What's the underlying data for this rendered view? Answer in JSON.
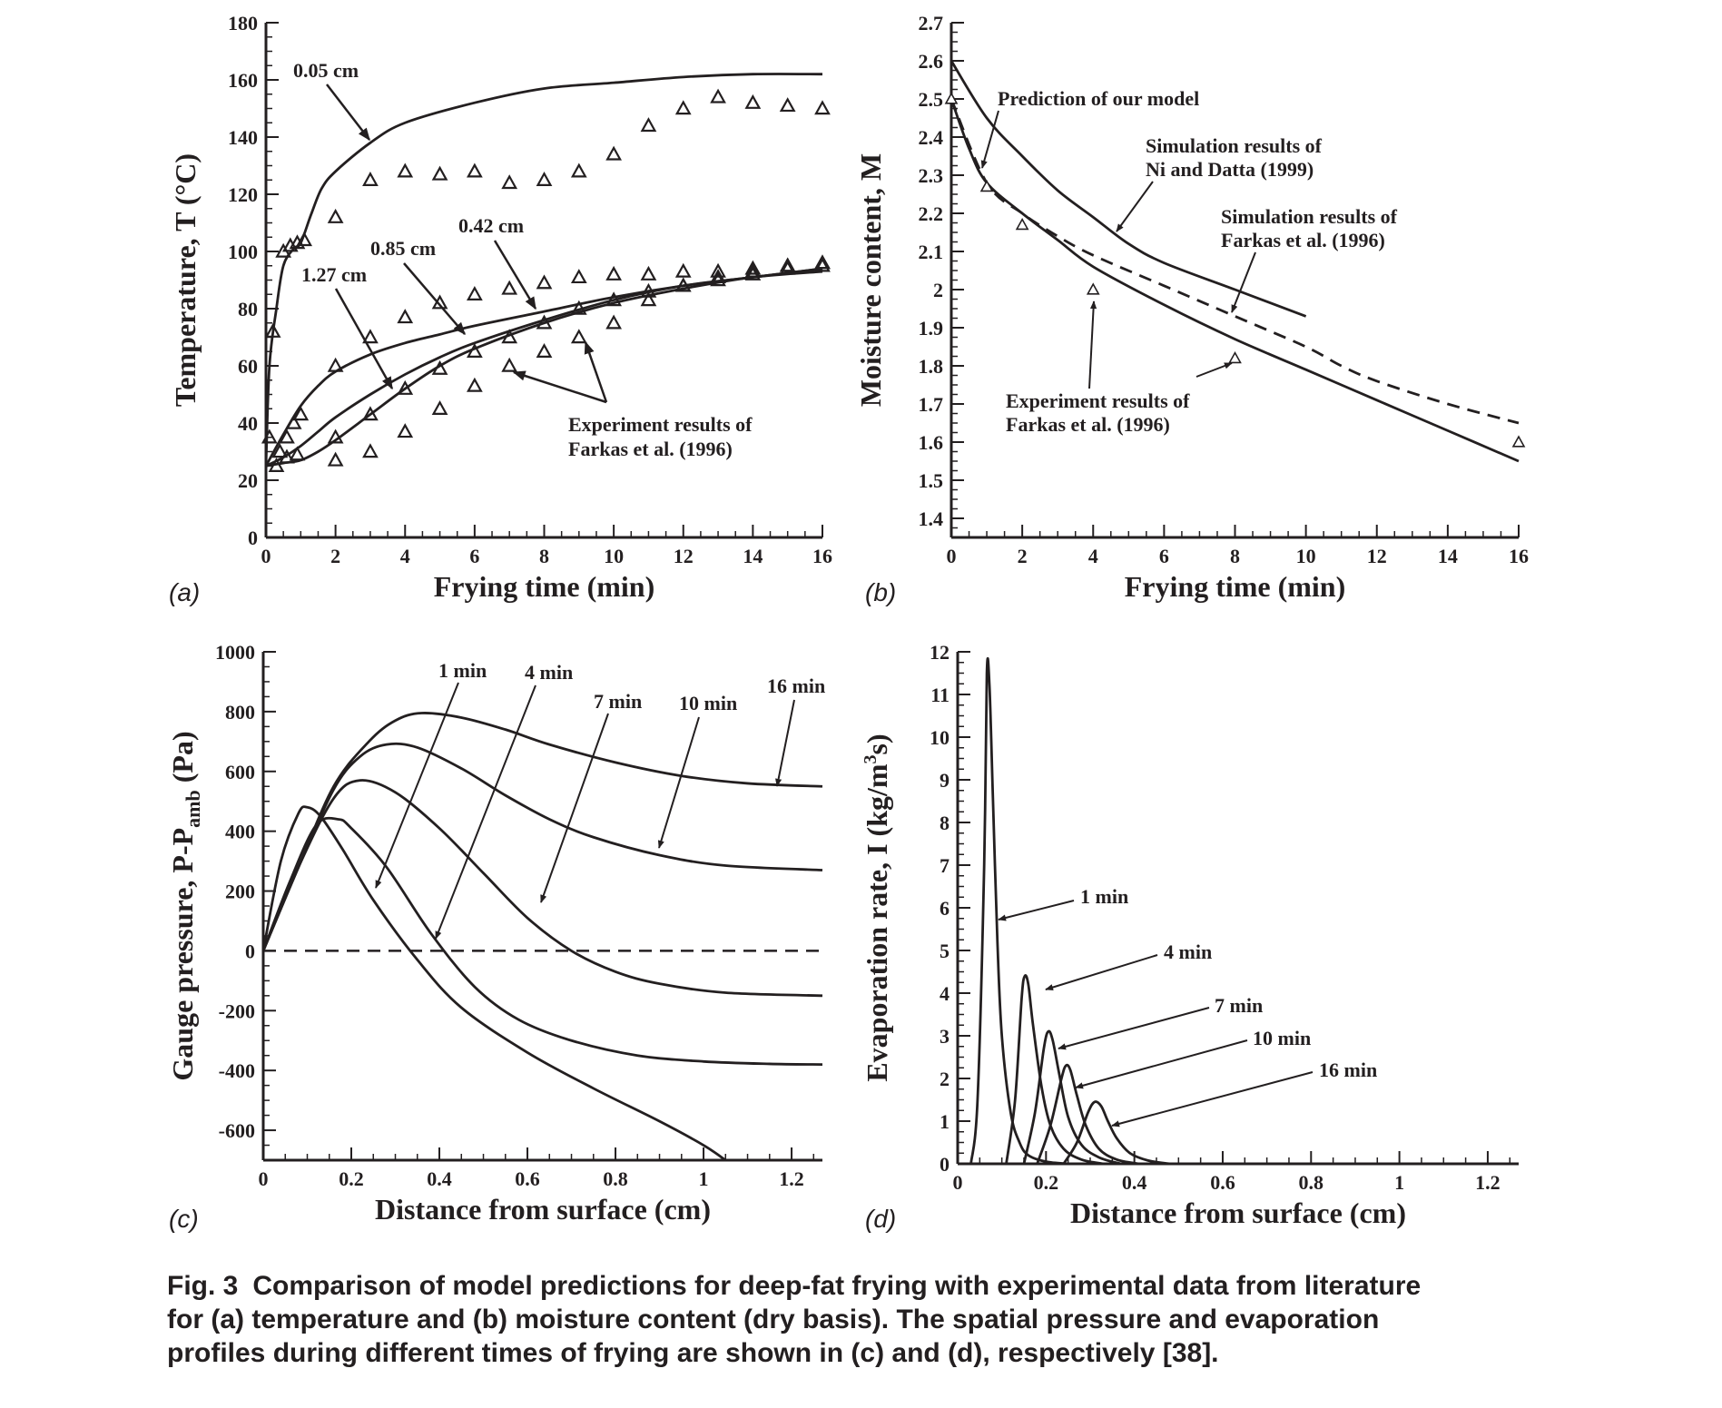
{
  "panels": {
    "a": "(a)",
    "b": "(b)",
    "c": "(c)",
    "d": "(d)"
  },
  "caption": {
    "label": "Fig. 3",
    "line1": "Comparison of model predictions for deep-fat frying with experimental data from literature",
    "line2": "for (a) temperature and (b) moisture content (dry basis). The spatial pressure and evaporation",
    "line3": "profiles during different times of frying are shown in (c) and (d), respectively [38]."
  },
  "chart_data": [
    {
      "id": "a",
      "type": "line",
      "xlabel": "Frying time (min)",
      "ylabel": "Temperature, T (°C)",
      "xlim": [
        0,
        16
      ],
      "ylim": [
        0,
        180
      ],
      "xticks": [
        0,
        2,
        4,
        6,
        8,
        10,
        12,
        14,
        16
      ],
      "yticks": [
        0,
        20,
        40,
        60,
        80,
        100,
        120,
        140,
        160,
        180
      ],
      "series": [
        {
          "name": "0.05 cm",
          "x": [
            0,
            0.1,
            0.3,
            0.5,
            0.8,
            1.0,
            1.3,
            1.6,
            2,
            3,
            4,
            6,
            8,
            10,
            12,
            14,
            16
          ],
          "y": [
            25,
            60,
            80,
            95,
            101,
            103,
            113,
            122,
            128,
            138,
            145,
            152,
            157,
            159,
            161,
            162,
            162
          ]
        },
        {
          "name": "0.42 cm",
          "x": [
            0,
            0.5,
            1,
            1.5,
            2,
            3,
            4,
            5,
            6,
            8,
            10,
            12,
            14,
            16
          ],
          "y": [
            25,
            36,
            46,
            53,
            58,
            64,
            68,
            71,
            74,
            79,
            84,
            88,
            91,
            94
          ]
        },
        {
          "name": "0.85 cm",
          "x": [
            0,
            0.5,
            1,
            1.5,
            2,
            3,
            4,
            5,
            6,
            8,
            10,
            12,
            14,
            16
          ],
          "y": [
            25,
            28,
            32,
            37,
            42,
            50,
            57,
            63,
            68,
            76,
            83,
            88,
            91,
            94
          ]
        },
        {
          "name": "1.27 cm",
          "x": [
            0,
            0.5,
            1,
            1.5,
            2,
            3,
            4,
            5,
            6,
            8,
            10,
            12,
            14,
            16
          ],
          "y": [
            25,
            26,
            27,
            30,
            34,
            43,
            52,
            60,
            66,
            75,
            82,
            87,
            91,
            93
          ]
        }
      ],
      "experiment": {
        "name": "Experiment results of Farkas et al. (1996)",
        "points": [
          [
            0.2,
            72
          ],
          [
            0.5,
            100
          ],
          [
            0.7,
            102
          ],
          [
            0.9,
            103
          ],
          [
            1.1,
            104
          ],
          [
            2,
            112
          ],
          [
            3,
            125
          ],
          [
            4,
            128
          ],
          [
            5,
            127
          ],
          [
            6,
            128
          ],
          [
            7,
            124
          ],
          [
            8,
            125
          ],
          [
            9,
            128
          ],
          [
            10,
            134
          ],
          [
            11,
            144
          ],
          [
            12,
            150
          ],
          [
            13,
            154
          ],
          [
            14,
            152
          ],
          [
            15,
            151
          ],
          [
            16,
            150
          ],
          [
            0.1,
            35
          ],
          [
            0.4,
            30
          ],
          [
            0.6,
            35
          ],
          [
            0.8,
            40
          ],
          [
            1,
            43
          ],
          [
            2,
            60
          ],
          [
            3,
            70
          ],
          [
            4,
            77
          ],
          [
            5,
            82
          ],
          [
            6,
            85
          ],
          [
            7,
            87
          ],
          [
            8,
            89
          ],
          [
            9,
            91
          ],
          [
            10,
            92
          ],
          [
            11,
            92
          ],
          [
            12,
            93
          ],
          [
            13,
            93
          ],
          [
            14,
            94
          ],
          [
            15,
            95
          ],
          [
            16,
            96
          ],
          [
            0.3,
            25
          ],
          [
            0.6,
            28
          ],
          [
            0.9,
            29
          ],
          [
            2,
            35
          ],
          [
            3,
            43
          ],
          [
            4,
            52
          ],
          [
            5,
            59
          ],
          [
            6,
            65
          ],
          [
            7,
            70
          ],
          [
            8,
            75
          ],
          [
            9,
            80
          ],
          [
            10,
            83
          ],
          [
            11,
            86
          ],
          [
            12,
            88
          ],
          [
            13,
            90
          ],
          [
            14,
            92
          ],
          [
            15,
            94
          ],
          [
            16,
            95
          ],
          [
            2,
            27
          ],
          [
            3,
            30
          ],
          [
            4,
            37
          ],
          [
            5,
            45
          ],
          [
            6,
            53
          ],
          [
            7,
            60
          ],
          [
            8,
            65
          ],
          [
            9,
            70
          ],
          [
            10,
            75
          ],
          [
            11,
            83
          ],
          [
            12,
            88
          ],
          [
            13,
            91
          ],
          [
            14,
            93
          ],
          [
            15,
            95
          ],
          [
            16,
            96
          ]
        ]
      },
      "annotations": [
        "0.05 cm",
        "0.42 cm",
        "0.85 cm",
        "1.27 cm",
        "Experiment results of",
        "Farkas et al. (1996)"
      ]
    },
    {
      "id": "b",
      "type": "line",
      "xlabel": "Frying time (min)",
      "ylabel": "Moisture content, M",
      "xlim": [
        0,
        16
      ],
      "ylim": [
        1.35,
        2.7
      ],
      "xticks": [
        0,
        2,
        4,
        6,
        8,
        10,
        12,
        14,
        16
      ],
      "yticks": [
        1.4,
        1.5,
        1.6,
        1.7,
        1.8,
        1.9,
        2,
        2.1,
        2.2,
        2.3,
        2.4,
        2.5,
        2.6,
        2.7
      ],
      "series": [
        {
          "name": "Prediction of our model",
          "style": "solid",
          "x": [
            0,
            0.5,
            1,
            2,
            3,
            4,
            6,
            8,
            10,
            12,
            14,
            16
          ],
          "y": [
            2.5,
            2.37,
            2.28,
            2.2,
            2.13,
            2.06,
            1.96,
            1.87,
            1.79,
            1.71,
            1.63,
            1.55
          ]
        },
        {
          "name": "Simulation results of Ni and Datta (1999)",
          "style": "solid",
          "x": [
            0,
            1,
            2,
            3,
            4,
            5,
            6,
            8,
            10
          ],
          "y": [
            2.6,
            2.45,
            2.35,
            2.26,
            2.19,
            2.12,
            2.07,
            2.0,
            1.93
          ]
        },
        {
          "name": "Simulation results of Farkas et al. (1996)",
          "style": "dashed",
          "x": [
            0,
            1,
            2,
            3,
            4,
            6,
            8,
            10,
            11,
            12,
            14,
            16
          ],
          "y": [
            2.5,
            2.28,
            2.2,
            2.14,
            2.09,
            2.01,
            1.93,
            1.85,
            1.8,
            1.76,
            1.7,
            1.65
          ]
        }
      ],
      "experiment": {
        "name": "Experiment results of Farkas et al. (1996)",
        "points": [
          [
            0,
            2.5
          ],
          [
            1,
            2.27
          ],
          [
            2,
            2.17
          ],
          [
            4,
            2.0
          ],
          [
            8,
            1.82
          ],
          [
            16,
            1.6
          ]
        ]
      },
      "annotations": [
        "Prediction of our model",
        "Simulation results of",
        "Ni and Datta (1999)",
        "Simulation results of",
        "Farkas et al. (1996)",
        "Experiment results of",
        "Farkas et al. (1996)"
      ]
    },
    {
      "id": "c",
      "type": "line",
      "xlabel": "Distance from surface (cm)",
      "ylabel": "Gauge pressure, P-P",
      "ylabel_sub": "amb",
      "ylabel_unit": " (Pa)",
      "xlim": [
        0,
        1.27
      ],
      "ylim": [
        -700,
        1000
      ],
      "xticks": [
        0,
        0.2,
        0.4,
        0.6,
        0.8,
        1,
        1.2
      ],
      "xtick_labels": [
        "0",
        "0.2",
        "0.4",
        "0.6",
        "0.8",
        "1",
        "1.2"
      ],
      "yticks": [
        -600,
        -400,
        -200,
        0,
        200,
        400,
        600,
        800,
        1000
      ],
      "series": [
        {
          "name": "1 min",
          "x": [
            0,
            0.04,
            0.08,
            0.1,
            0.13,
            0.18,
            0.25,
            0.35,
            0.45,
            0.6,
            0.75,
            0.9,
            1.0,
            1.05
          ],
          "y": [
            0,
            300,
            460,
            480,
            450,
            340,
            170,
            -30,
            -190,
            -340,
            -460,
            -570,
            -650,
            -700
          ]
        },
        {
          "name": "4 min",
          "x": [
            0,
            0.06,
            0.12,
            0.17,
            0.2,
            0.28,
            0.38,
            0.48,
            0.58,
            0.7,
            0.85,
            1.0,
            1.15,
            1.27
          ],
          "y": [
            0,
            230,
            420,
            440,
            410,
            280,
            60,
            -120,
            -230,
            -300,
            -350,
            -370,
            -378,
            -380
          ]
        },
        {
          "name": "7 min",
          "x": [
            0,
            0.08,
            0.16,
            0.22,
            0.3,
            0.4,
            0.5,
            0.6,
            0.7,
            0.8,
            0.9,
            1.05,
            1.27
          ],
          "y": [
            0,
            280,
            510,
            570,
            530,
            410,
            260,
            110,
            0,
            -70,
            -110,
            -140,
            -150
          ]
        },
        {
          "name": "10 min",
          "x": [
            0,
            0.08,
            0.16,
            0.22,
            0.28,
            0.35,
            0.45,
            0.55,
            0.65,
            0.75,
            0.9,
            1.05,
            1.27
          ],
          "y": [
            0,
            280,
            540,
            650,
            690,
            680,
            610,
            520,
            440,
            380,
            320,
            285,
            270
          ]
        },
        {
          "name": "16 min",
          "x": [
            0,
            0.08,
            0.16,
            0.24,
            0.3,
            0.36,
            0.45,
            0.55,
            0.65,
            0.8,
            0.95,
            1.1,
            1.27
          ],
          "y": [
            0,
            280,
            550,
            700,
            770,
            795,
            780,
            740,
            690,
            630,
            585,
            560,
            550
          ]
        }
      ],
      "reference_line": {
        "y": 0,
        "style": "dashed"
      },
      "annotations": [
        "1 min",
        "4 min",
        "7 min",
        "10 min",
        "16 min"
      ]
    },
    {
      "id": "d",
      "type": "line",
      "xlabel": "Distance from surface (cm)",
      "ylabel": "Evaporation rate, I (kg/m",
      "ylabel_sup": "3",
      "ylabel_unit": "s)",
      "xlim": [
        0,
        1.27
      ],
      "ylim": [
        0,
        12
      ],
      "xticks": [
        0,
        0.2,
        0.4,
        0.6,
        0.8,
        1,
        1.2
      ],
      "xtick_labels": [
        "0",
        "0.2",
        "0.4",
        "0.6",
        "0.8",
        "1",
        "1.2"
      ],
      "yticks": [
        0,
        1,
        2,
        3,
        4,
        5,
        6,
        7,
        8,
        9,
        10,
        11,
        12
      ],
      "series": [
        {
          "name": "1 min",
          "x": [
            0.03,
            0.045,
            0.06,
            0.066,
            0.072,
            0.08,
            0.09,
            0.1,
            0.12,
            0.14,
            0.16,
            0.2,
            0.25
          ],
          "y": [
            0,
            1.5,
            7,
            11.5,
            11.2,
            8.5,
            5.2,
            3.0,
            1.2,
            0.5,
            0.2,
            0.05,
            0
          ]
        },
        {
          "name": "4 min",
          "x": [
            0.11,
            0.13,
            0.145,
            0.152,
            0.16,
            0.17,
            0.19,
            0.21,
            0.24,
            0.28,
            0.33
          ],
          "y": [
            0,
            1.5,
            3.9,
            4.4,
            4.2,
            3.3,
            1.8,
            0.9,
            0.35,
            0.1,
            0
          ]
        },
        {
          "name": "7 min",
          "x": [
            0.15,
            0.175,
            0.195,
            0.205,
            0.215,
            0.23,
            0.25,
            0.28,
            0.32,
            0.37
          ],
          "y": [
            0,
            1.2,
            2.7,
            3.1,
            2.9,
            2.1,
            1.1,
            0.45,
            0.15,
            0
          ]
        },
        {
          "name": "10 min",
          "x": [
            0.18,
            0.21,
            0.235,
            0.245,
            0.255,
            0.27,
            0.29,
            0.32,
            0.36,
            0.41
          ],
          "y": [
            0,
            0.9,
            2.0,
            2.3,
            2.2,
            1.6,
            0.9,
            0.35,
            0.1,
            0
          ]
        },
        {
          "name": "16 min",
          "x": [
            0.24,
            0.27,
            0.295,
            0.31,
            0.325,
            0.34,
            0.36,
            0.39,
            0.43,
            0.48
          ],
          "y": [
            0,
            0.5,
            1.2,
            1.45,
            1.35,
            1.0,
            0.6,
            0.25,
            0.08,
            0
          ]
        }
      ],
      "annotations": [
        "1 min",
        "4 min",
        "7 min",
        "10 min",
        "16 min"
      ]
    }
  ]
}
